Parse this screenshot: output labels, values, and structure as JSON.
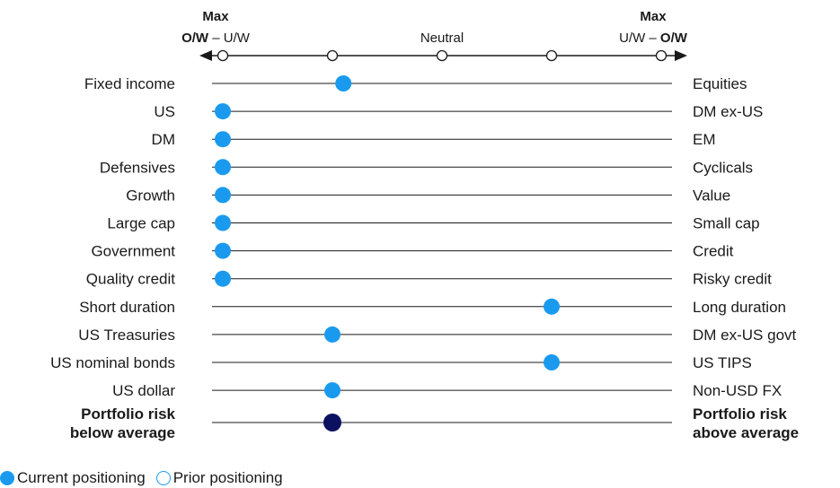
{
  "header": {
    "left_max": "Max",
    "left_ow": "O/W",
    "left_dash": " – ",
    "left_uw": "U/W",
    "neutral": "Neutral",
    "right_max": "Max",
    "right_uw": "U/W",
    "right_dash": " – ",
    "right_ow": "O/W"
  },
  "colors": {
    "current": "#1a9aef",
    "portfolio_risk": "#0b1060",
    "line": "#1a1a1a"
  },
  "chart_data": {
    "type": "scatter",
    "scale_points": [
      1,
      2,
      3,
      4,
      5
    ],
    "scale_note": "1 = Max O/W left, 3 = Neutral, 5 = Max O/W right",
    "rows": [
      {
        "left": "Fixed income",
        "right": "Equities",
        "current": 2.1
      },
      {
        "left": "US",
        "right": "DM ex-US",
        "current": 1.0
      },
      {
        "left": "DM",
        "right": "EM",
        "current": 1.0
      },
      {
        "left": "Defensives",
        "right": "Cyclicals",
        "current": 1.0
      },
      {
        "left": "Growth",
        "right": "Value",
        "current": 1.0
      },
      {
        "left": "Large cap",
        "right": "Small cap",
        "current": 1.0
      },
      {
        "left": "Government",
        "right": "Credit",
        "current": 1.0
      },
      {
        "left": "Quality credit",
        "right": "Risky credit",
        "current": 1.0
      },
      {
        "left": "Short duration",
        "right": "Long duration",
        "current": 4.0
      },
      {
        "left": "US Treasuries",
        "right": "DM ex-US govt",
        "current": 2.0
      },
      {
        "left": "US nominal bonds",
        "right": "US TIPS",
        "current": 4.0
      },
      {
        "left": "US dollar",
        "right": "Non-USD FX",
        "current": 2.0
      },
      {
        "left": "Portfolio risk below average",
        "left_lines": [
          "Portfolio risk",
          "below average"
        ],
        "right": "Portfolio risk above average",
        "right_lines": [
          "Portfolio risk",
          "above average"
        ],
        "current": 2.0,
        "bold": true,
        "dark": true
      }
    ]
  },
  "legend": {
    "current": "Current positioning",
    "prior": "Prior positioning"
  }
}
